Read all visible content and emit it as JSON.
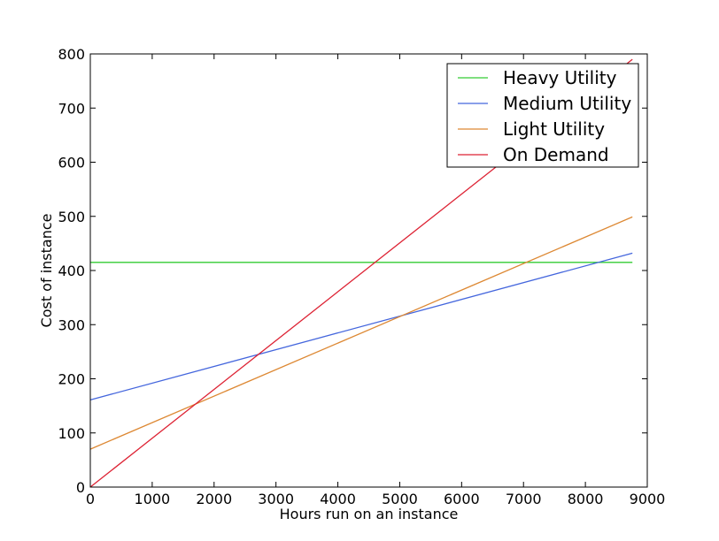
{
  "chart_data": {
    "type": "line",
    "title": "",
    "xlabel": "Hours run on an instance",
    "ylabel": "Cost of instance",
    "xlim": [
      0,
      9000
    ],
    "ylim": [
      0,
      800
    ],
    "xticks": [
      0,
      1000,
      2000,
      3000,
      4000,
      5000,
      6000,
      7000,
      8000,
      9000
    ],
    "yticks": [
      0,
      100,
      200,
      300,
      400,
      500,
      600,
      700,
      800
    ],
    "grid": false,
    "legend_position": "top-right",
    "series": [
      {
        "name": "Heavy Utility",
        "color": "#33cc33",
        "x": [
          0,
          8760
        ],
        "y": [
          415,
          415
        ]
      },
      {
        "name": "Medium Utility",
        "color": "#4466dd",
        "x": [
          0,
          8760
        ],
        "y": [
          161,
          432
        ]
      },
      {
        "name": "Light Utility",
        "color": "#dd8833",
        "x": [
          0,
          8760
        ],
        "y": [
          70,
          499
        ]
      },
      {
        "name": "On Demand",
        "color": "#dd2233",
        "x": [
          0,
          8760
        ],
        "y": [
          0,
          790
        ]
      }
    ]
  }
}
